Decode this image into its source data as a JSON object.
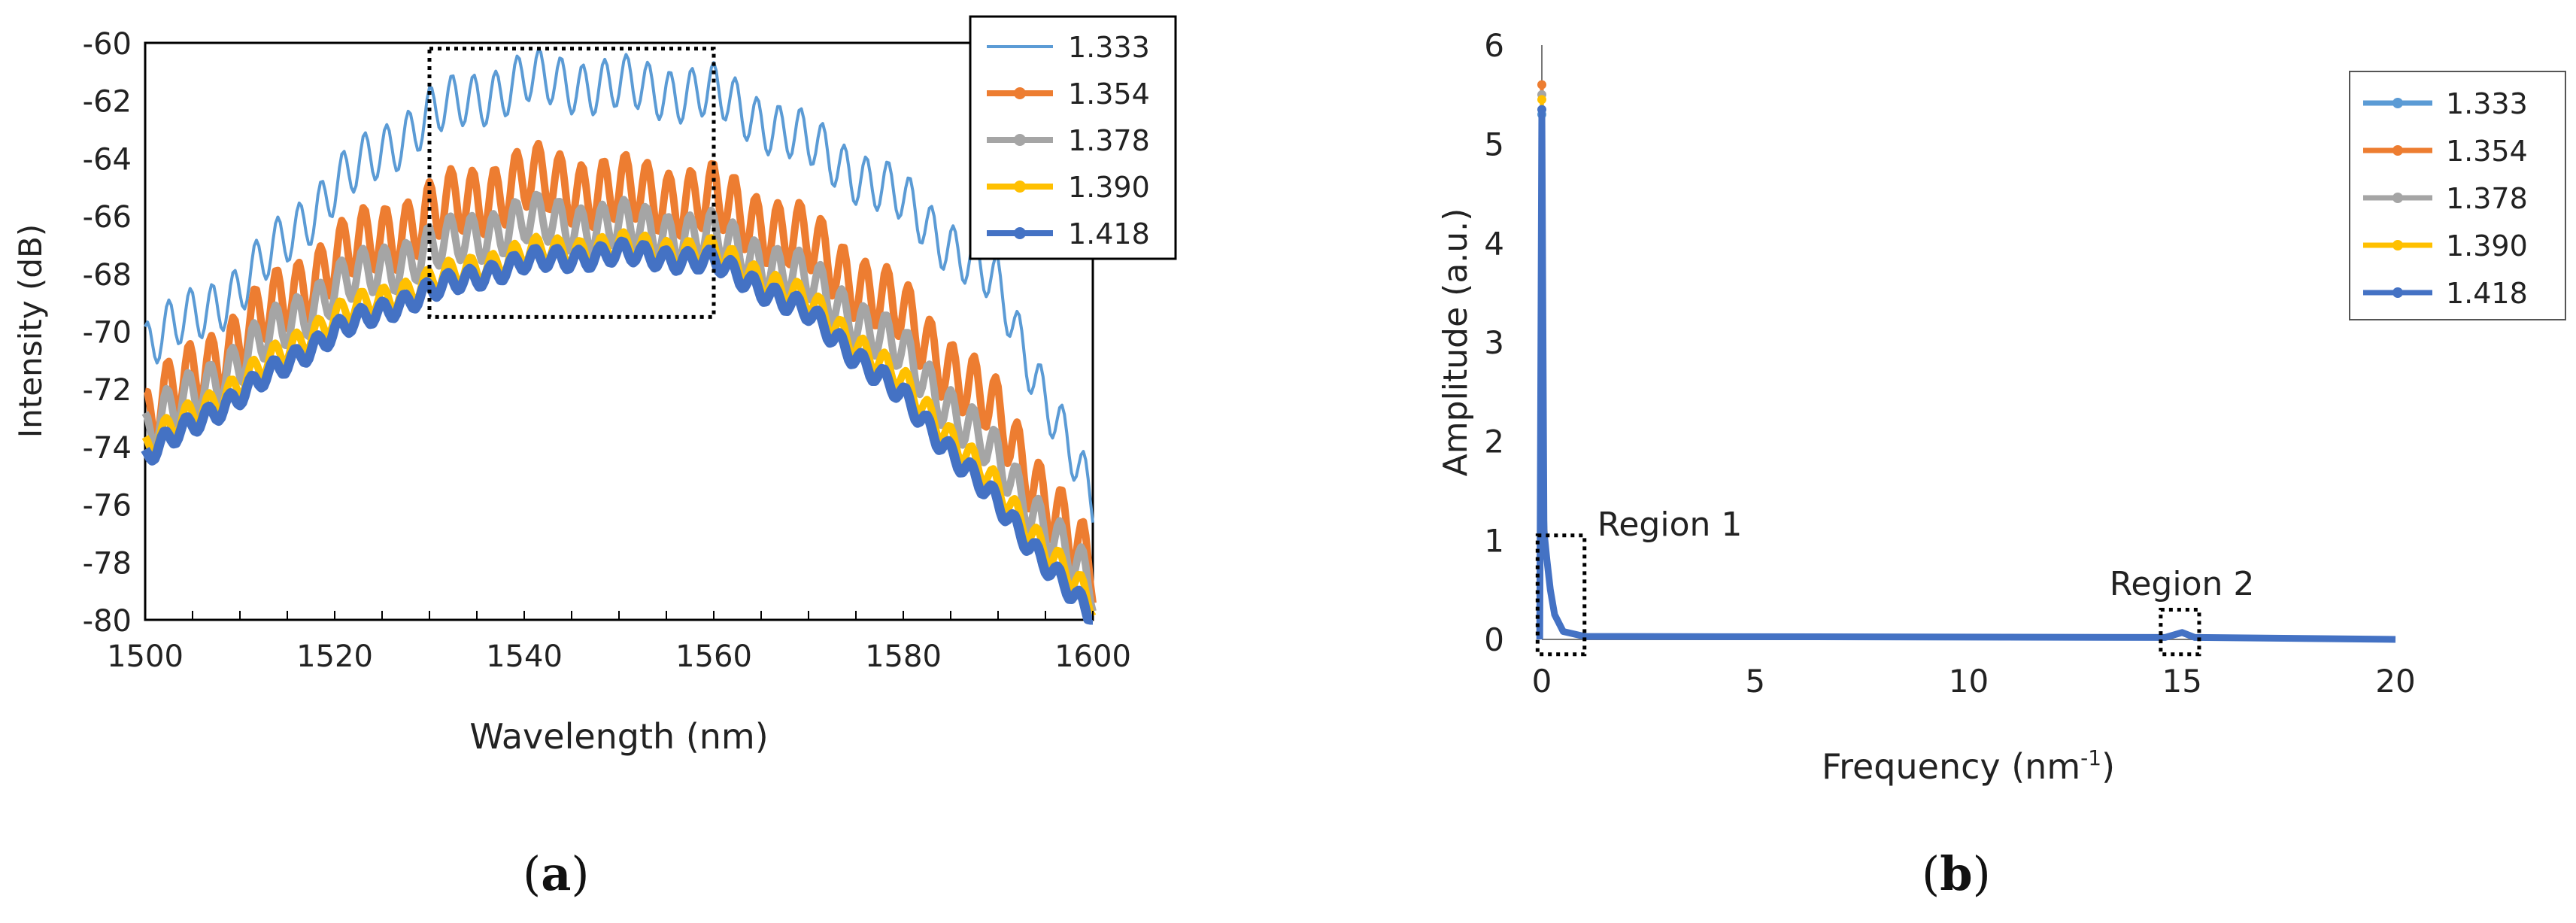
{
  "chart_data": [
    {
      "panel": "a",
      "type": "line",
      "xlabel": "Wavelength (nm)",
      "ylabel": "Intensity (dB)",
      "xlim": [
        1500,
        1600
      ],
      "ylim": [
        -80,
        -60
      ],
      "xticks": [
        1500,
        1520,
        1540,
        1560,
        1580,
        1600
      ],
      "yticks": [
        -60,
        -62,
        -64,
        -66,
        -68,
        -70,
        -72,
        -74,
        -76,
        -78,
        -80
      ],
      "highlight_box": {
        "x": [
          1530,
          1560
        ],
        "y": [
          -69.5,
          -60.2
        ]
      },
      "series": [
        {
          "name": "1.333",
          "color": "#5b9bd5",
          "marker": "none",
          "envelope": [
            [
              1500,
              -70.5
            ],
            [
              1510,
              -68.5
            ],
            [
              1520,
              -65
            ],
            [
              1530,
              -62.5
            ],
            [
              1540,
              -61.3
            ],
            [
              1550,
              -61.5
            ],
            [
              1560,
              -61.8
            ],
            [
              1570,
              -63.5
            ],
            [
              1580,
              -65.5
            ],
            [
              1590,
              -68.5
            ],
            [
              1600,
              -76
            ]
          ],
          "ripple": 0.9,
          "period": 2.3
        },
        {
          "name": "1.354",
          "color": "#ed7d31",
          "marker": "dot",
          "envelope": [
            [
              1500,
              -73
            ],
            [
              1510,
              -70.2
            ],
            [
              1520,
              -67.5
            ],
            [
              1530,
              -66
            ],
            [
              1540,
              -64.8
            ],
            [
              1550,
              -65.2
            ],
            [
              1560,
              -65.5
            ],
            [
              1570,
              -67
            ],
            [
              1580,
              -69.5
            ],
            [
              1590,
              -73
            ],
            [
              1600,
              -78.5
            ]
          ],
          "ripple": 1.1,
          "period": 2.3
        },
        {
          "name": "1.378",
          "color": "#a5a5a5",
          "marker": "dot",
          "envelope": [
            [
              1500,
              -73.5
            ],
            [
              1510,
              -71
            ],
            [
              1520,
              -68.5
            ],
            [
              1530,
              -67.2
            ],
            [
              1540,
              -66.2
            ],
            [
              1550,
              -66.4
            ],
            [
              1560,
              -66.8
            ],
            [
              1570,
              -68.3
            ],
            [
              1580,
              -70.8
            ],
            [
              1590,
              -74.5
            ],
            [
              1600,
              -79
            ]
          ],
          "ripple": 0.8,
          "period": 2.3
        },
        {
          "name": "1.390",
          "color": "#ffc000",
          "marker": "dot",
          "envelope": [
            [
              1500,
              -74
            ],
            [
              1510,
              -71.8
            ],
            [
              1520,
              -69.5
            ],
            [
              1530,
              -68.3
            ],
            [
              1540,
              -67.3
            ],
            [
              1550,
              -67.1
            ],
            [
              1560,
              -67.3
            ],
            [
              1570,
              -69
            ],
            [
              1580,
              -71.8
            ],
            [
              1590,
              -75.5
            ],
            [
              1600,
              -79.5
            ]
          ],
          "ripple": 0.45,
          "period": 2.3
        },
        {
          "name": "1.418",
          "color": "#4472c4",
          "marker": "dot",
          "envelope": [
            [
              1500,
              -74.3
            ],
            [
              1510,
              -72.2
            ],
            [
              1520,
              -70
            ],
            [
              1530,
              -68.6
            ],
            [
              1540,
              -67.6
            ],
            [
              1550,
              -67.3
            ],
            [
              1560,
              -67.6
            ],
            [
              1570,
              -69.4
            ],
            [
              1580,
              -72.3
            ],
            [
              1590,
              -76
            ],
            [
              1600,
              -80
            ]
          ],
          "ripple": 0.35,
          "period": 2.3
        }
      ]
    },
    {
      "panel": "b",
      "type": "line",
      "xlabel": "Frequency (nm",
      "xlabel_sup": "-1",
      "xlabel_end": ")",
      "ylabel": "Amplitude (a.u.)",
      "xlim": [
        0,
        20
      ],
      "ylim": [
        0,
        6
      ],
      "xticks": [
        0,
        5,
        10,
        15,
        20
      ],
      "yticks": [
        0,
        1,
        2,
        3,
        4,
        5,
        6
      ],
      "annotations": [
        {
          "text": "Region 1",
          "at": [
            1.3,
            1.05
          ],
          "box": {
            "x": [
              -0.1,
              1.0
            ],
            "y": [
              -0.15,
              1.05
            ]
          }
        },
        {
          "text": "Region 2",
          "at": [
            13.3,
            0.45
          ],
          "box": {
            "x": [
              14.5,
              15.4
            ],
            "y": [
              -0.15,
              0.3
            ]
          }
        }
      ],
      "series": [
        {
          "name": "1.333",
          "color": "#5b9bd5",
          "peak": 5.3
        },
        {
          "name": "1.354",
          "color": "#ed7d31",
          "peak": 5.6
        },
        {
          "name": "1.378",
          "color": "#a5a5a5",
          "peak": 5.5
        },
        {
          "name": "1.390",
          "color": "#ffc000",
          "peak": 5.45
        },
        {
          "name": "1.418",
          "color": "#4472c4",
          "peak": 5.35
        }
      ]
    }
  ],
  "labels": {
    "a": "a",
    "b": "b"
  }
}
